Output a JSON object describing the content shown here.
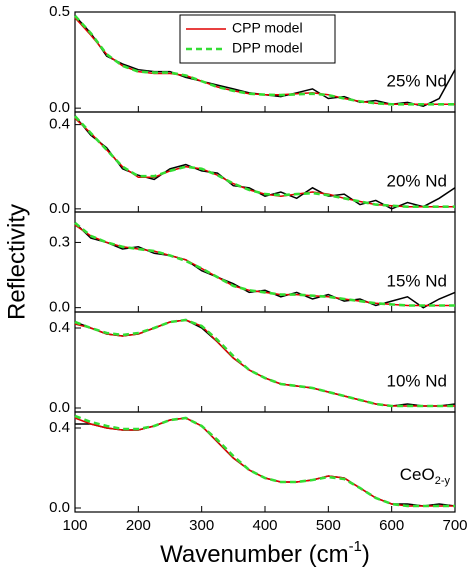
{
  "chart_data": [
    {
      "type": "line",
      "annotation": "25% Nd",
      "legend": "upper center",
      "x": [
        100,
        125,
        150,
        175,
        200,
        225,
        250,
        275,
        300,
        325,
        350,
        375,
        400,
        425,
        450,
        475,
        500,
        525,
        550,
        575,
        600,
        625,
        650,
        675,
        700
      ],
      "xlim": [
        100,
        700
      ],
      "xticks": [
        100,
        200,
        300,
        400,
        500,
        600,
        700
      ],
      "ylim": [
        -0.02,
        0.5
      ],
      "yticks": [
        {
          "value": 0,
          "label": "0.0"
        },
        0.5
      ],
      "series": [
        {
          "color": "#000000",
          "values": [
            0.48,
            0.39,
            0.27,
            0.23,
            0.2,
            0.19,
            0.19,
            0.16,
            0.14,
            0.12,
            0.1,
            0.08,
            0.07,
            0.06,
            0.08,
            0.1,
            0.05,
            0.06,
            0.03,
            0.04,
            0.02,
            0.03,
            0.01,
            0.05,
            0.2
          ]
        },
        {
          "name": "CPP model",
          "color": "#e00000",
          "values": [
            0.47,
            0.38,
            0.28,
            0.22,
            0.19,
            0.18,
            0.18,
            0.17,
            0.14,
            0.11,
            0.09,
            0.075,
            0.07,
            0.07,
            0.075,
            0.08,
            0.07,
            0.05,
            0.035,
            0.025,
            0.02,
            0.02,
            0.02,
            0.02,
            0.02
          ]
        },
        {
          "name": "DPP model",
          "color": "#33dd33",
          "dashed": true,
          "values": [
            0.48,
            0.39,
            0.28,
            0.22,
            0.19,
            0.185,
            0.185,
            0.17,
            0.14,
            0.11,
            0.09,
            0.075,
            0.07,
            0.068,
            0.072,
            0.075,
            0.068,
            0.05,
            0.035,
            0.025,
            0.02,
            0.02,
            0.02,
            0.02,
            0.02
          ]
        }
      ]
    },
    {
      "type": "line",
      "annotation": "20% Nd",
      "x": [
        100,
        125,
        150,
        175,
        200,
        225,
        250,
        275,
        300,
        325,
        350,
        375,
        400,
        425,
        450,
        475,
        500,
        525,
        550,
        575,
        600,
        625,
        650,
        675,
        700
      ],
      "xlim": [
        100,
        700
      ],
      "xticks": [
        100,
        200,
        300,
        400,
        500,
        600,
        700
      ],
      "ylim": [
        -0.015,
        0.46
      ],
      "yticks": [
        {
          "value": 0,
          "label": "0.0"
        },
        0.4
      ],
      "series": [
        {
          "color": "#000000",
          "values": [
            0.44,
            0.35,
            0.29,
            0.19,
            0.16,
            0.14,
            0.19,
            0.21,
            0.18,
            0.17,
            0.11,
            0.1,
            0.06,
            0.08,
            0.05,
            0.1,
            0.06,
            0.07,
            0.02,
            0.04,
            0.0,
            0.03,
            0.01,
            0.05,
            0.1
          ]
        },
        {
          "color": "#e00000",
          "values": [
            0.43,
            0.36,
            0.28,
            0.2,
            0.15,
            0.15,
            0.18,
            0.2,
            0.19,
            0.16,
            0.12,
            0.09,
            0.07,
            0.06,
            0.07,
            0.08,
            0.07,
            0.05,
            0.035,
            0.02,
            0.015,
            0.01,
            0.01,
            0.01,
            0.01
          ]
        },
        {
          "color": "#33dd33",
          "dashed": true,
          "values": [
            0.44,
            0.36,
            0.28,
            0.2,
            0.155,
            0.155,
            0.18,
            0.2,
            0.19,
            0.16,
            0.12,
            0.09,
            0.07,
            0.065,
            0.07,
            0.075,
            0.065,
            0.05,
            0.035,
            0.02,
            0.015,
            0.01,
            0.01,
            0.01,
            0.01
          ]
        }
      ]
    },
    {
      "type": "line",
      "annotation": "15% Nd",
      "y_label": "Reflectivity",
      "x": [
        100,
        125,
        150,
        175,
        200,
        225,
        250,
        275,
        300,
        325,
        350,
        375,
        400,
        425,
        450,
        475,
        500,
        525,
        550,
        575,
        600,
        625,
        650,
        675,
        700
      ],
      "xlim": [
        100,
        700
      ],
      "xticks": [
        100,
        200,
        300,
        400,
        500,
        600,
        700
      ],
      "ylim": [
        -0.02,
        0.44
      ],
      "yticks": [
        {
          "value": 0,
          "label": "0.0"
        },
        0.3
      ],
      "series": [
        {
          "color": "#000000",
          "values": [
            0.39,
            0.32,
            0.3,
            0.27,
            0.28,
            0.25,
            0.24,
            0.22,
            0.17,
            0.14,
            0.11,
            0.07,
            0.08,
            0.05,
            0.07,
            0.04,
            0.06,
            0.03,
            0.04,
            0.01,
            0.03,
            0.05,
            0.0,
            0.04,
            0.07
          ]
        },
        {
          "color": "#e00000",
          "values": [
            0.38,
            0.33,
            0.3,
            0.28,
            0.27,
            0.26,
            0.24,
            0.22,
            0.18,
            0.14,
            0.1,
            0.08,
            0.07,
            0.06,
            0.06,
            0.055,
            0.05,
            0.04,
            0.03,
            0.02,
            0.015,
            0.01,
            0.01,
            0.01,
            0.01
          ]
        },
        {
          "color": "#33dd33",
          "dashed": true,
          "values": [
            0.39,
            0.33,
            0.3,
            0.28,
            0.27,
            0.26,
            0.24,
            0.215,
            0.18,
            0.14,
            0.1,
            0.08,
            0.07,
            0.06,
            0.06,
            0.055,
            0.05,
            0.04,
            0.03,
            0.02,
            0.015,
            0.01,
            0.01,
            0.01,
            0.01
          ]
        }
      ]
    },
    {
      "type": "line",
      "annotation": "10% Nd",
      "x": [
        100,
        125,
        150,
        175,
        200,
        225,
        250,
        275,
        300,
        325,
        350,
        375,
        400,
        425,
        450,
        475,
        500,
        525,
        550,
        575,
        600,
        625,
        650,
        675,
        700
      ],
      "xlim": [
        100,
        700
      ],
      "xticks": [
        100,
        200,
        300,
        400,
        500,
        600,
        700
      ],
      "ylim": [
        -0.02,
        0.48
      ],
      "yticks": [
        {
          "value": 0,
          "label": "0.0"
        },
        0.4
      ],
      "series": [
        {
          "color": "#000000",
          "values": [
            0.43,
            0.4,
            0.37,
            0.36,
            0.37,
            0.4,
            0.43,
            0.44,
            0.4,
            0.33,
            0.25,
            0.19,
            0.15,
            0.12,
            0.11,
            0.1,
            0.08,
            0.06,
            0.04,
            0.02,
            0.01,
            0.02,
            0.01,
            0.01,
            0.02
          ]
        },
        {
          "color": "#e00000",
          "values": [
            0.42,
            0.4,
            0.37,
            0.36,
            0.37,
            0.4,
            0.43,
            0.44,
            0.41,
            0.33,
            0.25,
            0.19,
            0.15,
            0.12,
            0.11,
            0.1,
            0.08,
            0.06,
            0.04,
            0.02,
            0.01,
            0.01,
            0.01,
            0.01,
            0.01
          ]
        },
        {
          "color": "#33dd33",
          "dashed": true,
          "values": [
            0.43,
            0.4,
            0.375,
            0.365,
            0.375,
            0.4,
            0.43,
            0.44,
            0.41,
            0.34,
            0.26,
            0.19,
            0.15,
            0.12,
            0.11,
            0.1,
            0.08,
            0.06,
            0.04,
            0.02,
            0.01,
            0.01,
            0.01,
            0.01,
            0.01
          ]
        }
      ]
    },
    {
      "type": "line",
      "annotation": [
        "CeO",
        "2-y"
      ],
      "x_label": [
        "Wavenumber (cm",
        "-1",
        ")"
      ],
      "x": [
        100,
        125,
        150,
        175,
        200,
        225,
        250,
        275,
        300,
        325,
        350,
        375,
        400,
        425,
        450,
        475,
        500,
        525,
        550,
        575,
        600,
        625,
        650,
        675,
        700
      ],
      "xlim": [
        100,
        700
      ],
      "xticks": [
        100,
        200,
        300,
        400,
        500,
        600,
        700
      ],
      "ylim": [
        -0.02,
        0.48
      ],
      "yticks": [
        {
          "value": 0,
          "label": "0.0"
        },
        0.4
      ],
      "series": [
        {
          "color": "#000000",
          "values": [
            0.42,
            0.42,
            0.4,
            0.39,
            0.39,
            0.41,
            0.44,
            0.45,
            0.41,
            0.33,
            0.25,
            0.19,
            0.15,
            0.13,
            0.13,
            0.14,
            0.16,
            0.15,
            0.1,
            0.05,
            0.02,
            0.02,
            0.01,
            0.02,
            0.01
          ]
        },
        {
          "color": "#e00000",
          "values": [
            0.45,
            0.42,
            0.4,
            0.39,
            0.39,
            0.41,
            0.44,
            0.45,
            0.41,
            0.33,
            0.25,
            0.19,
            0.15,
            0.13,
            0.13,
            0.14,
            0.16,
            0.15,
            0.1,
            0.05,
            0.02,
            0.01,
            0.01,
            0.01,
            0.01
          ]
        },
        {
          "color": "#33dd33",
          "dashed": true,
          "values": [
            0.46,
            0.43,
            0.41,
            0.395,
            0.395,
            0.41,
            0.44,
            0.45,
            0.41,
            0.34,
            0.26,
            0.19,
            0.15,
            0.13,
            0.13,
            0.14,
            0.155,
            0.145,
            0.1,
            0.05,
            0.02,
            0.01,
            0.01,
            0.01,
            0.01
          ]
        }
      ]
    }
  ]
}
